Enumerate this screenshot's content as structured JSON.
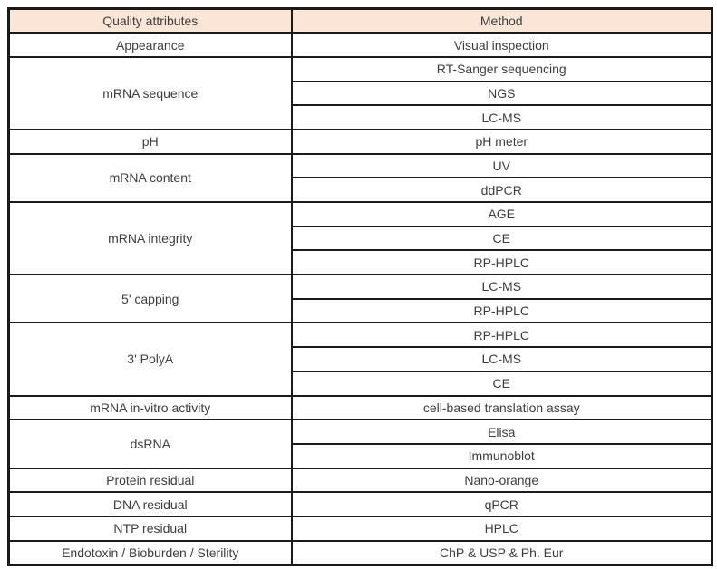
{
  "colors": {
    "header_fill": "#fbe5d6",
    "border": "#1a1a1a",
    "text": "#3d3d3d"
  },
  "table": {
    "headers": [
      "Quality attributes",
      "Method"
    ],
    "rows": [
      {
        "attribute": "Appearance",
        "methods": [
          "Visual inspection"
        ]
      },
      {
        "attribute": "mRNA sequence",
        "methods": [
          "RT-Sanger sequencing",
          "NGS",
          "LC-MS"
        ]
      },
      {
        "attribute": "pH",
        "methods": [
          "pH meter"
        ]
      },
      {
        "attribute": "mRNA content",
        "methods": [
          "UV",
          "ddPCR"
        ]
      },
      {
        "attribute": "mRNA integrity",
        "methods": [
          "AGE",
          "CE",
          "RP-HPLC"
        ]
      },
      {
        "attribute": "5' capping",
        "methods": [
          "LC-MS",
          "RP-HPLC"
        ]
      },
      {
        "attribute": "3' PolyA",
        "methods": [
          "RP-HPLC",
          "LC-MS",
          "CE"
        ]
      },
      {
        "attribute": "mRNA in-vitro activity",
        "methods": [
          "cell-based translation assay"
        ]
      },
      {
        "attribute": "dsRNA",
        "methods": [
          "Elisa",
          "Immunoblot"
        ]
      },
      {
        "attribute": "Protein residual",
        "methods": [
          "Nano-orange"
        ]
      },
      {
        "attribute": "DNA residual",
        "methods": [
          "qPCR"
        ]
      },
      {
        "attribute": "NTP residual",
        "methods": [
          "HPLC"
        ]
      },
      {
        "attribute": "Endotoxin / Bioburden / Sterility",
        "methods": [
          "ChP & USP & Ph. Eur"
        ]
      }
    ]
  }
}
